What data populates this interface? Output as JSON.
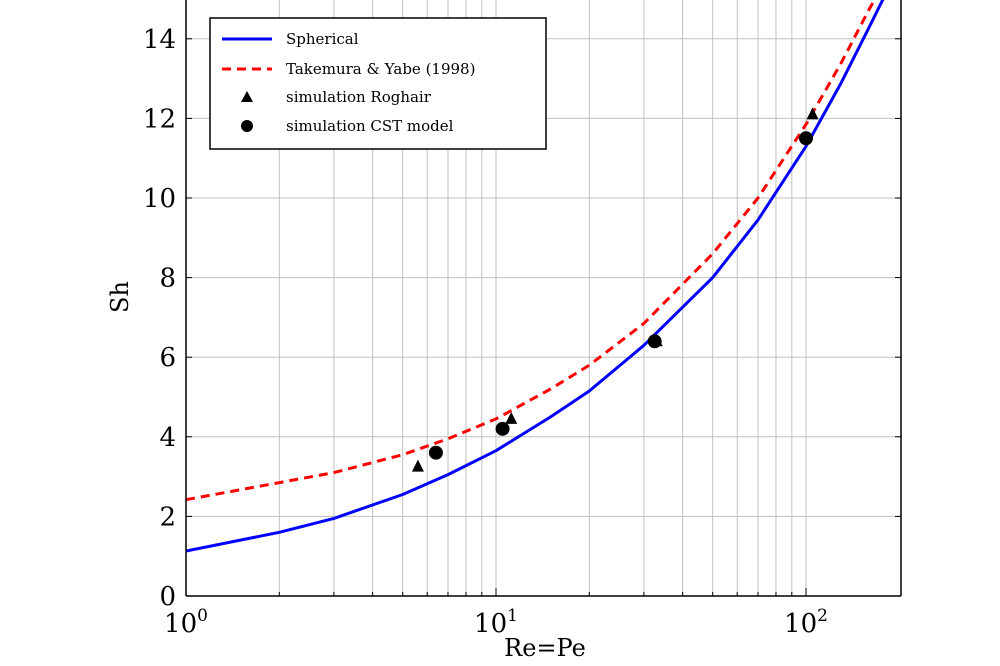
{
  "chart_data": {
    "type": "line",
    "x_scale": "log",
    "xlabel": "Re=Pe",
    "ylabel": "Sh",
    "xlim": [
      1,
      180
    ],
    "ylim": [
      0,
      15
    ],
    "grid": true,
    "legend_position": "top-left",
    "x_major_ticks": [
      {
        "base": "10",
        "exp": "0",
        "value": 1
      },
      {
        "base": "10",
        "exp": "1",
        "value": 10
      },
      {
        "base": "10",
        "exp": "2",
        "value": 100
      }
    ],
    "y_ticks": [
      0,
      2,
      4,
      6,
      8,
      10,
      12,
      14
    ],
    "series": [
      {
        "name": "Spherical",
        "style": "solid-line",
        "color": "#0000ff",
        "x": [
          1,
          2,
          3,
          5,
          7,
          10,
          15,
          20,
          30,
          50,
          70,
          100,
          130,
          160,
          180
        ],
        "y": [
          1.13,
          1.6,
          1.95,
          2.55,
          3.05,
          3.65,
          4.5,
          5.15,
          6.3,
          8.0,
          9.45,
          11.3,
          12.9,
          14.3,
          15.1
        ]
      },
      {
        "name": "Takemura & Yabe (1998)",
        "style": "dashed-line",
        "color": "#ff0000",
        "x": [
          1,
          2,
          3,
          5,
          7,
          10,
          15,
          20,
          30,
          50,
          70,
          100,
          130,
          160,
          170
        ],
        "y": [
          2.42,
          2.85,
          3.1,
          3.55,
          3.95,
          4.45,
          5.2,
          5.8,
          6.85,
          8.6,
          10.0,
          11.85,
          13.4,
          14.75,
          15.1
        ]
      },
      {
        "name": "simulation Roghair",
        "style": "triangle-marker",
        "color": "#000000",
        "x": [
          5.6,
          11.2,
          33,
          105
        ],
        "y": [
          3.25,
          4.45,
          6.4,
          12.1
        ]
      },
      {
        "name": "simulation CST model",
        "style": "circle-marker",
        "color": "#000000",
        "x": [
          6.4,
          10.5,
          32.5,
          100
        ],
        "y": [
          3.6,
          4.2,
          6.4,
          11.5
        ]
      }
    ]
  }
}
